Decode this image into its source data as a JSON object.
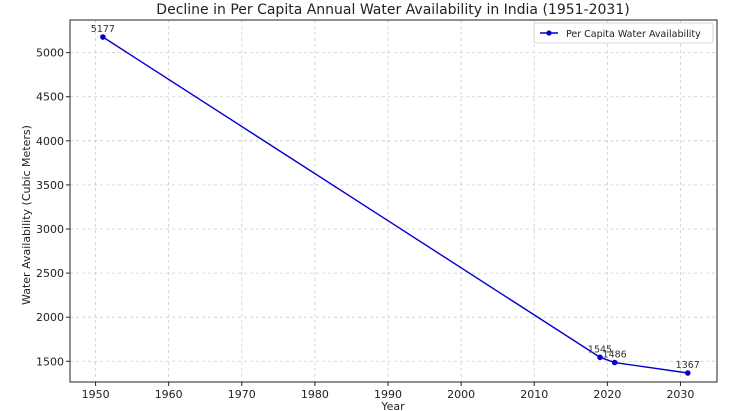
{
  "chart_data": {
    "type": "line",
    "title": "Decline in Per Capita Annual Water Availability in India (1951-2031)",
    "xlabel": "Year",
    "ylabel": "Water Availability (Cubic Meters)",
    "xlim": [
      1946.5,
      2035.0
    ],
    "ylim": [
      1265,
      5370
    ],
    "x_ticks": [
      1950,
      1960,
      1970,
      1980,
      1990,
      2000,
      2010,
      2020,
      2030
    ],
    "y_ticks": [
      1500,
      2000,
      2500,
      3000,
      3500,
      4000,
      4500,
      5000
    ],
    "grid": true,
    "legend_position": "top-right",
    "series": [
      {
        "name": "Per Capita Water Availability",
        "color": "#0000cc",
        "marker": "circle",
        "x": [
          1951,
          2019,
          2021,
          2031
        ],
        "y": [
          5177,
          1545,
          1486,
          1367
        ],
        "labels": [
          "5177",
          "1545",
          "1486",
          "1367"
        ]
      }
    ]
  }
}
